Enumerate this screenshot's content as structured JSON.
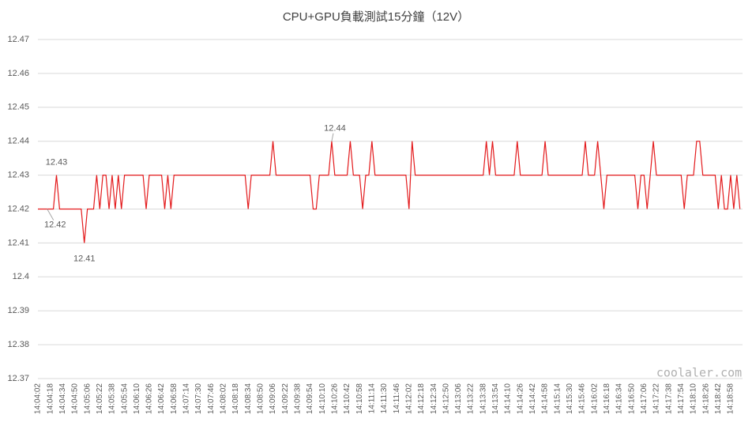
{
  "chart_data": {
    "type": "line",
    "title": "CPU+GPU負載測試15分鐘（12V）",
    "watermark": "coolaler.com",
    "categories": [
      "14:04:02",
      null,
      null,
      null,
      "14:04:18",
      null,
      null,
      null,
      "14:04:34",
      null,
      null,
      null,
      "14:04:50",
      null,
      null,
      null,
      "14:05:06",
      null,
      null,
      null,
      "14:05:22",
      null,
      null,
      null,
      "14:05:38",
      null,
      null,
      null,
      "14:05:54",
      null,
      null,
      null,
      "14:06:10",
      null,
      null,
      null,
      "14:06:26",
      null,
      null,
      null,
      "14:06:42",
      null,
      null,
      null,
      "14:06:58",
      null,
      null,
      null,
      "14:07:14",
      null,
      null,
      null,
      "14:07:30",
      null,
      null,
      null,
      "14:07:46",
      null,
      null,
      null,
      "14:08:02",
      null,
      null,
      null,
      "14:08:18",
      null,
      null,
      null,
      "14:08:34",
      null,
      null,
      null,
      "14:08:50",
      null,
      null,
      null,
      "14:09:06",
      null,
      null,
      null,
      "14:09:22",
      null,
      null,
      null,
      "14:09:38",
      null,
      null,
      null,
      "14:09:54",
      null,
      null,
      null,
      "14:10:10",
      null,
      null,
      null,
      "14:10:26",
      null,
      null,
      null,
      "14:10:42",
      null,
      null,
      null,
      "14:10:58",
      null,
      null,
      null,
      "14:11:14",
      null,
      null,
      null,
      "14:11:30",
      null,
      null,
      null,
      "14:11:46",
      null,
      null,
      null,
      "14:12:02",
      null,
      null,
      null,
      "14:12:18",
      null,
      null,
      null,
      "14:12:34",
      null,
      null,
      null,
      "14:12:50",
      null,
      null,
      null,
      "14:13:06",
      null,
      null,
      null,
      "14:13:22",
      null,
      null,
      null,
      "14:13:38",
      null,
      null,
      null,
      "14:13:54",
      null,
      null,
      null,
      "14:14:10",
      null,
      null,
      null,
      "14:14:26",
      null,
      null,
      null,
      "14:14:42",
      null,
      null,
      null,
      "14:14:58",
      null,
      null,
      null,
      "14:15:14",
      null,
      null,
      null,
      "14:15:30",
      null,
      null,
      null,
      "14:15:46",
      null,
      null,
      null,
      "14:16:02",
      null,
      null,
      null,
      "14:16:18",
      null,
      null,
      null,
      "14:16:34",
      null,
      null,
      null,
      "14:16:50",
      null,
      null,
      null,
      "14:17:06",
      null,
      null,
      null,
      "14:17:22",
      null,
      null,
      null,
      "14:17:38",
      null,
      null,
      null,
      "14:17:54",
      null,
      null,
      null,
      "14:18:10",
      null,
      null,
      null,
      "14:18:26",
      null,
      null,
      null,
      "14:18:42",
      null,
      null,
      null,
      "14:18:58",
      null,
      null,
      null
    ],
    "series": [
      {
        "color": "#e31a1c",
        "values": [
          12.42,
          12.42,
          12.42,
          12.42,
          12.42,
          12.42,
          12.43,
          12.42,
          12.42,
          12.42,
          12.42,
          12.42,
          12.42,
          12.42,
          12.42,
          12.41,
          12.42,
          12.42,
          12.42,
          12.43,
          12.42,
          12.43,
          12.43,
          12.42,
          12.43,
          12.42,
          12.43,
          12.42,
          12.43,
          12.43,
          12.43,
          12.43,
          12.43,
          12.43,
          12.43,
          12.42,
          12.43,
          12.43,
          12.43,
          12.43,
          12.43,
          12.42,
          12.43,
          12.42,
          12.43,
          12.43,
          12.43,
          12.43,
          12.43,
          12.43,
          12.43,
          12.43,
          12.43,
          12.43,
          12.43,
          12.43,
          12.43,
          12.43,
          12.43,
          12.43,
          12.43,
          12.43,
          12.43,
          12.43,
          12.43,
          12.43,
          12.43,
          12.43,
          12.42,
          12.43,
          12.43,
          12.43,
          12.43,
          12.43,
          12.43,
          12.43,
          12.44,
          12.43,
          12.43,
          12.43,
          12.43,
          12.43,
          12.43,
          12.43,
          12.43,
          12.43,
          12.43,
          12.43,
          12.43,
          12.42,
          12.42,
          12.43,
          12.43,
          12.43,
          12.43,
          12.44,
          12.43,
          12.43,
          12.43,
          12.43,
          12.43,
          12.44,
          12.43,
          12.43,
          12.43,
          12.42,
          12.43,
          12.43,
          12.44,
          12.43,
          12.43,
          12.43,
          12.43,
          12.43,
          12.43,
          12.43,
          12.43,
          12.43,
          12.43,
          12.43,
          12.42,
          12.44,
          12.43,
          12.43,
          12.43,
          12.43,
          12.43,
          12.43,
          12.43,
          12.43,
          12.43,
          12.43,
          12.43,
          12.43,
          12.43,
          12.43,
          12.43,
          12.43,
          12.43,
          12.43,
          12.43,
          12.43,
          12.43,
          12.43,
          12.43,
          12.44,
          12.43,
          12.44,
          12.43,
          12.43,
          12.43,
          12.43,
          12.43,
          12.43,
          12.43,
          12.44,
          12.43,
          12.43,
          12.43,
          12.43,
          12.43,
          12.43,
          12.43,
          12.43,
          12.44,
          12.43,
          12.43,
          12.43,
          12.43,
          12.43,
          12.43,
          12.43,
          12.43,
          12.43,
          12.43,
          12.43,
          12.43,
          12.44,
          12.43,
          12.43,
          12.43,
          12.44,
          12.43,
          12.42,
          12.43,
          12.43,
          12.43,
          12.43,
          12.43,
          12.43,
          12.43,
          12.43,
          12.43,
          12.43,
          12.42,
          12.43,
          12.43,
          12.42,
          12.43,
          12.44,
          12.43,
          12.43,
          12.43,
          12.43,
          12.43,
          12.43,
          12.43,
          12.43,
          12.43,
          12.42,
          12.43,
          12.43,
          12.43,
          12.44,
          12.44,
          12.43,
          12.43,
          12.43,
          12.43,
          12.43,
          12.42,
          12.43,
          12.42,
          12.42,
          12.43,
          12.42,
          12.43,
          12.42
        ]
      }
    ],
    "labeled_points": [
      {
        "index": 6,
        "position": "above"
      },
      {
        "index": 3,
        "position": "below"
      },
      {
        "index": 15,
        "position": "below"
      },
      {
        "index": 95,
        "position": "above"
      }
    ],
    "ylim": [
      12.37,
      12.47
    ],
    "yticks": [
      12.37,
      12.38,
      12.39,
      12.4,
      12.41,
      12.42,
      12.43,
      12.44,
      12.45,
      12.46,
      12.47
    ],
    "grid": true
  }
}
